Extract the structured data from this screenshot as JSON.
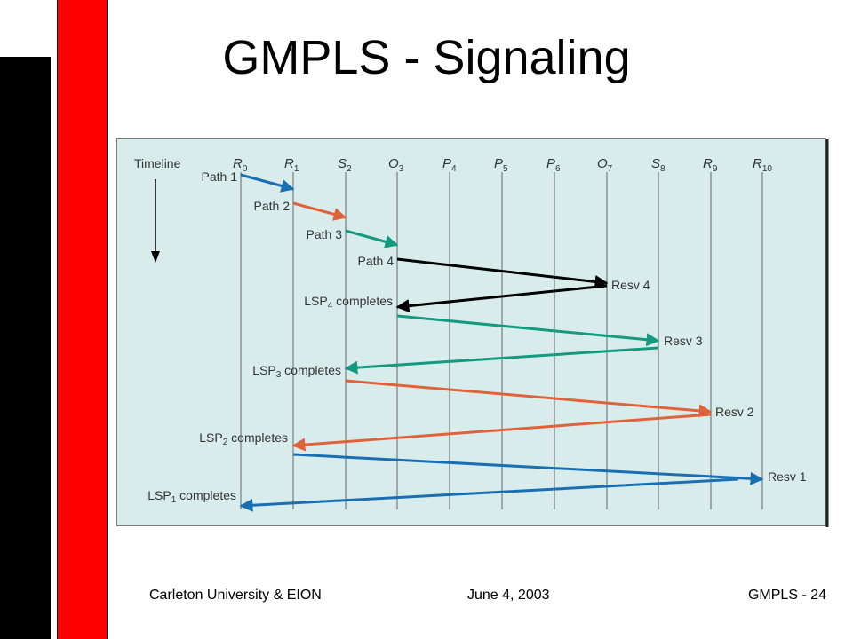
{
  "slide": {
    "title": "GMPLS - Signaling",
    "footer_left": "Carleton University & EION",
    "footer_center": "June 4, 2003",
    "footer_right": "GMPLS - 24"
  },
  "diagram": {
    "timeline_label": "Timeline",
    "background_color": "#d8ecec",
    "nodes": [
      {
        "letter": "R",
        "sub": "0"
      },
      {
        "letter": "R",
        "sub": "1"
      },
      {
        "letter": "S",
        "sub": "2"
      },
      {
        "letter": "O",
        "sub": "3"
      },
      {
        "letter": "P",
        "sub": "4"
      },
      {
        "letter": "P",
        "sub": "5"
      },
      {
        "letter": "P",
        "sub": "6"
      },
      {
        "letter": "O",
        "sub": "7"
      },
      {
        "letter": "S",
        "sub": "8"
      },
      {
        "letter": "R",
        "sub": "9"
      },
      {
        "letter": "R",
        "sub": "10"
      }
    ],
    "colors": {
      "blue": "#1a6fb3",
      "orange": "#e0623a",
      "teal": "#139a80",
      "black": "#000000"
    },
    "path_labels": [
      "Path 1",
      "Path 2",
      "Path 3",
      "Path 4"
    ],
    "resv_labels": [
      "Resv 4",
      "Resv 3",
      "Resv 2",
      "Resv 1"
    ],
    "complete_labels": [
      {
        "pre": "LSP",
        "sub": "4",
        "post": " completes"
      },
      {
        "pre": "LSP",
        "sub": "3",
        "post": " completes"
      },
      {
        "pre": "LSP",
        "sub": "2",
        "post": " completes"
      },
      {
        "pre": "LSP",
        "sub": "1",
        "post": " completes"
      }
    ]
  }
}
